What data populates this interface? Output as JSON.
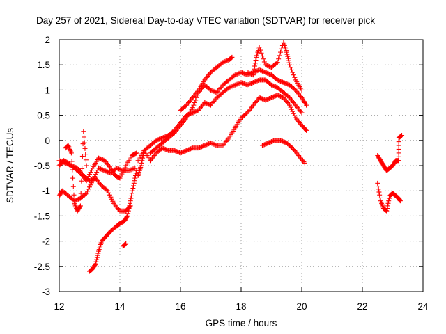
{
  "chart_data": {
    "type": "scatter",
    "title": "Day 257 of 2021, Sidereal Day-to-day VTEC variation (SDTVAR) for receiver pick",
    "xlabel": "GPS time / hours",
    "ylabel": "SDTVAR / TECUs",
    "xlim": [
      12,
      24
    ],
    "ylim": [
      -3,
      2
    ],
    "xticks": [
      12,
      14,
      16,
      18,
      20,
      22,
      24
    ],
    "yticks": [
      -3,
      -2.5,
      -2,
      -1.5,
      -1,
      -0.5,
      0,
      0.5,
      1,
      1.5,
      2
    ],
    "xtick_labels": [
      "12",
      "14",
      "16",
      "18",
      "20",
      "22",
      "24"
    ],
    "ytick_labels": [
      "-3",
      "-2.5",
      "-2",
      "-1.5",
      "-1",
      "-0.5",
      "0",
      "0.5",
      "1",
      "1.5",
      "2"
    ],
    "grid": true,
    "marker": "+",
    "color": "#ff0000",
    "series": [
      {
        "points": [
          [
            12.0,
            -0.4
          ],
          [
            12.2,
            -0.45
          ],
          [
            12.4,
            -0.5
          ],
          [
            12.6,
            -0.55
          ],
          [
            12.8,
            -0.7
          ],
          [
            13.0,
            -0.8
          ],
          [
            13.2,
            -0.75
          ],
          [
            13.4,
            -0.9
          ],
          [
            13.6,
            -1.0
          ],
          [
            13.8,
            -1.25
          ],
          [
            14.0,
            -1.4
          ],
          [
            14.2,
            -1.4
          ],
          [
            14.35,
            -1.3
          ]
        ]
      },
      {
        "points": [
          [
            12.0,
            -1.1
          ],
          [
            12.1,
            -1.0
          ],
          [
            12.3,
            -1.1
          ],
          [
            12.5,
            -1.2
          ],
          [
            12.7,
            -1.15
          ],
          [
            12.9,
            -1.05
          ],
          [
            13.1,
            -0.8
          ],
          [
            13.3,
            -0.55
          ],
          [
            13.5,
            -0.6
          ],
          [
            13.7,
            -0.65
          ],
          [
            13.9,
            -0.55
          ],
          [
            14.1,
            -0.6
          ],
          [
            14.3,
            -0.6
          ],
          [
            14.5,
            -0.55
          ]
        ]
      },
      {
        "points": [
          [
            12.0,
            -0.5
          ],
          [
            12.15,
            -0.4
          ],
          [
            12.3,
            -0.45
          ],
          [
            12.5,
            -0.55
          ],
          [
            12.7,
            -0.65
          ],
          [
            12.9,
            -0.8
          ],
          [
            13.1,
            -0.55
          ],
          [
            13.3,
            -0.35
          ],
          [
            13.5,
            -0.4
          ],
          [
            13.7,
            -0.55
          ],
          [
            13.85,
            -0.7
          ],
          [
            14.0,
            -0.75
          ],
          [
            14.2,
            -0.5
          ],
          [
            14.4,
            -0.3
          ],
          [
            14.55,
            -0.25
          ]
        ]
      },
      {
        "points": [
          [
            12.2,
            -0.15
          ],
          [
            12.3,
            -0.1
          ],
          [
            12.4,
            -0.25
          ],
          [
            12.5,
            -1.25
          ],
          [
            12.6,
            -1.4
          ],
          [
            12.7,
            -1.3
          ],
          [
            12.8,
            0.18
          ],
          [
            12.9,
            -0.5
          ]
        ]
      },
      {
        "points": [
          [
            13.0,
            -2.6
          ],
          [
            13.1,
            -2.55
          ],
          [
            13.2,
            -2.45
          ],
          [
            13.3,
            -2.2
          ],
          [
            13.4,
            -2.0
          ],
          [
            13.55,
            -1.9
          ],
          [
            13.7,
            -1.8
          ],
          [
            13.9,
            -1.7
          ],
          [
            14.0,
            -1.65
          ],
          [
            14.15,
            -1.6
          ],
          [
            14.25,
            -1.5
          ],
          [
            14.35,
            -1.2
          ],
          [
            14.45,
            -0.9
          ],
          [
            14.55,
            -0.6
          ],
          [
            14.2,
            -2.05
          ],
          [
            14.1,
            -2.1
          ]
        ]
      },
      {
        "points": [
          [
            14.6,
            -0.7
          ],
          [
            14.7,
            -0.5
          ],
          [
            14.8,
            -0.2
          ],
          [
            15.0,
            -0.4
          ],
          [
            15.2,
            -0.25
          ],
          [
            15.4,
            -0.15
          ],
          [
            15.6,
            -0.2
          ],
          [
            15.8,
            -0.2
          ],
          [
            16.0,
            -0.25
          ],
          [
            16.2,
            -0.2
          ],
          [
            16.4,
            -0.15
          ],
          [
            16.6,
            -0.15
          ],
          [
            16.8,
            -0.1
          ],
          [
            17.0,
            -0.05
          ],
          [
            17.2,
            -0.1
          ],
          [
            17.4,
            -0.1
          ],
          [
            17.6,
            0.05
          ],
          [
            17.8,
            0.25
          ],
          [
            18.0,
            0.45
          ],
          [
            18.2,
            0.55
          ],
          [
            18.4,
            0.7
          ],
          [
            18.6,
            0.85
          ],
          [
            18.8,
            0.8
          ],
          [
            19.0,
            0.85
          ],
          [
            19.2,
            0.9
          ],
          [
            19.4,
            0.85
          ],
          [
            19.6,
            0.7
          ],
          [
            19.8,
            0.45
          ],
          [
            20.0,
            0.3
          ],
          [
            20.15,
            0.2
          ]
        ]
      },
      {
        "points": [
          [
            14.6,
            -0.4
          ],
          [
            14.8,
            -0.2
          ],
          [
            15.0,
            -0.1
          ],
          [
            15.2,
            0.0
          ],
          [
            15.4,
            0.05
          ],
          [
            15.6,
            0.1
          ],
          [
            15.8,
            0.2
          ],
          [
            16.0,
            0.35
          ],
          [
            16.2,
            0.5
          ],
          [
            16.4,
            0.55
          ],
          [
            16.6,
            0.6
          ],
          [
            16.8,
            0.75
          ],
          [
            17.0,
            0.7
          ],
          [
            17.2,
            0.85
          ],
          [
            17.4,
            0.95
          ],
          [
            17.6,
            1.05
          ],
          [
            17.8,
            1.1
          ],
          [
            18.0,
            1.15
          ],
          [
            18.2,
            1.1
          ],
          [
            18.4,
            1.15
          ],
          [
            18.6,
            1.2
          ],
          [
            18.8,
            1.2
          ],
          [
            19.0,
            1.1
          ],
          [
            19.2,
            1.05
          ],
          [
            19.4,
            0.95
          ],
          [
            19.6,
            0.85
          ],
          [
            19.8,
            0.7
          ],
          [
            20.0,
            0.55
          ]
        ]
      },
      {
        "points": [
          [
            15.0,
            -0.25
          ],
          [
            15.2,
            -0.15
          ],
          [
            15.4,
            -0.05
          ],
          [
            15.6,
            0.05
          ],
          [
            15.8,
            0.15
          ],
          [
            16.0,
            0.3
          ],
          [
            16.2,
            0.45
          ],
          [
            16.4,
            0.65
          ],
          [
            16.6,
            0.95
          ],
          [
            16.8,
            1.1
          ],
          [
            17.0,
            1.0
          ],
          [
            17.2,
            0.95
          ],
          [
            17.4,
            1.1
          ],
          [
            17.6,
            1.2
          ],
          [
            17.8,
            1.3
          ],
          [
            18.0,
            1.35
          ],
          [
            18.2,
            1.3
          ],
          [
            18.4,
            1.35
          ],
          [
            18.6,
            1.4
          ],
          [
            18.8,
            1.35
          ],
          [
            19.0,
            1.3
          ],
          [
            19.2,
            1.2
          ],
          [
            19.4,
            1.15
          ],
          [
            19.6,
            1.1
          ],
          [
            19.8,
            1.0
          ],
          [
            20.0,
            0.85
          ],
          [
            20.15,
            0.7
          ]
        ]
      },
      {
        "points": [
          [
            16.0,
            0.6
          ],
          [
            16.2,
            0.7
          ],
          [
            16.4,
            0.85
          ],
          [
            16.6,
            1.0
          ],
          [
            16.8,
            1.2
          ],
          [
            17.0,
            1.35
          ],
          [
            17.2,
            1.45
          ],
          [
            17.4,
            1.55
          ],
          [
            17.6,
            1.6
          ],
          [
            17.7,
            1.65
          ],
          [
            18.2,
            1.35
          ],
          [
            18.4,
            1.3
          ],
          [
            18.5,
            1.65
          ],
          [
            18.6,
            1.85
          ],
          [
            18.8,
            1.5
          ],
          [
            19.0,
            1.45
          ],
          [
            19.2,
            1.55
          ],
          [
            19.4,
            1.95
          ],
          [
            19.5,
            1.75
          ],
          [
            19.6,
            1.5
          ],
          [
            19.8,
            1.2
          ],
          [
            20.0,
            1.0
          ]
        ]
      },
      {
        "points": [
          [
            18.7,
            -0.1
          ],
          [
            18.9,
            -0.05
          ],
          [
            19.1,
            0.0
          ],
          [
            19.3,
            0.0
          ],
          [
            19.5,
            -0.05
          ],
          [
            19.7,
            -0.15
          ],
          [
            19.9,
            -0.3
          ],
          [
            20.1,
            -0.45
          ]
        ]
      },
      {
        "points": [
          [
            22.5,
            -0.3
          ],
          [
            22.6,
            -0.4
          ],
          [
            22.7,
            -0.5
          ],
          [
            22.8,
            -0.6
          ],
          [
            22.9,
            -0.55
          ],
          [
            23.0,
            -0.5
          ],
          [
            23.1,
            -0.4
          ],
          [
            23.2,
            -0.4
          ],
          [
            23.2,
            0.05
          ],
          [
            23.3,
            0.1
          ]
        ]
      },
      {
        "points": [
          [
            22.5,
            -0.85
          ],
          [
            22.6,
            -1.2
          ],
          [
            22.7,
            -1.35
          ],
          [
            22.8,
            -1.4
          ],
          [
            22.9,
            -1.1
          ],
          [
            23.0,
            -1.05
          ],
          [
            23.1,
            -1.1
          ],
          [
            23.2,
            -1.15
          ],
          [
            23.25,
            -1.2
          ]
        ]
      }
    ]
  }
}
